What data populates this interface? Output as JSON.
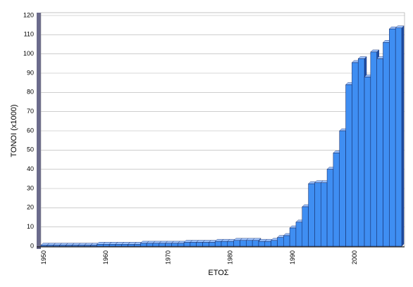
{
  "chart_data": {
    "type": "bar",
    "y_label": "ΤΟΝΟΙ (x1000)",
    "x_label": "ΕΤΟΣ",
    "categories": [
      "1950",
      null,
      null,
      null,
      null,
      null,
      null,
      null,
      null,
      null,
      "1960",
      null,
      null,
      null,
      null,
      null,
      null,
      null,
      null,
      null,
      "1970",
      null,
      null,
      null,
      null,
      null,
      null,
      null,
      null,
      null,
      "1980",
      null,
      null,
      null,
      null,
      null,
      null,
      null,
      null,
      null,
      "1990",
      null,
      null,
      null,
      null,
      null,
      null,
      null,
      null,
      null,
      "2000",
      null,
      null,
      null,
      null,
      null,
      null,
      null
    ],
    "values": [
      0.5,
      0.5,
      0.5,
      0.5,
      0.5,
      0.5,
      0.5,
      0.5,
      0.5,
      1,
      1,
      1,
      1,
      1,
      1,
      1,
      1.5,
      1.5,
      1.5,
      1.5,
      1.5,
      1.5,
      1.5,
      2,
      2,
      2,
      2,
      2,
      2.5,
      2.5,
      2.5,
      3,
      3,
      3,
      3,
      2.5,
      2.5,
      3,
      4.5,
      5.5,
      9.5,
      12.5,
      20.5,
      32.5,
      33,
      33,
      40,
      48.5,
      60,
      84,
      95.5,
      97.5,
      88,
      101,
      97.5,
      106,
      113,
      113.5
    ],
    "color": "#3f8ef2",
    "ylim": [
      0,
      120
    ],
    "yticks": [
      0,
      10,
      20,
      30,
      40,
      50,
      60,
      70,
      80,
      90,
      100,
      110,
      120
    ],
    "grid": true
  }
}
